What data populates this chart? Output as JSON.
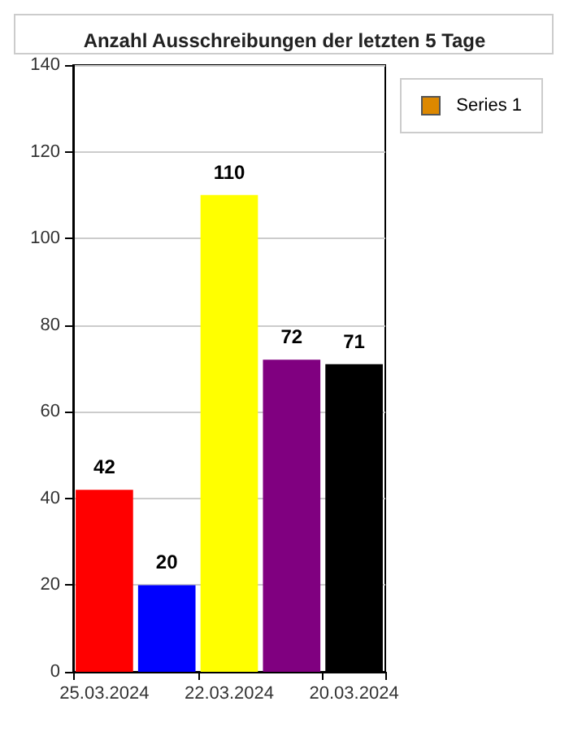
{
  "chart_data": {
    "type": "bar",
    "title": "Anzahl Ausschreibungen der letzten 5 Tage",
    "categories": [
      "25.03.2024",
      null,
      "22.03.2024",
      null,
      "20.03.2024"
    ],
    "series": [
      {
        "name": "Series 1",
        "color": "#dd8800",
        "colors": [
          "#ff0000",
          "#0000ff",
          "#ffff00",
          "#800080",
          "#000000"
        ],
        "values": [
          42,
          20,
          110,
          72,
          71
        ]
      }
    ],
    "ylim": [
      0,
      140
    ],
    "yticks": [
      0,
      20,
      40,
      60,
      80,
      100,
      120,
      140
    ],
    "grid": "y",
    "legend": "top right",
    "data_labels": true
  }
}
